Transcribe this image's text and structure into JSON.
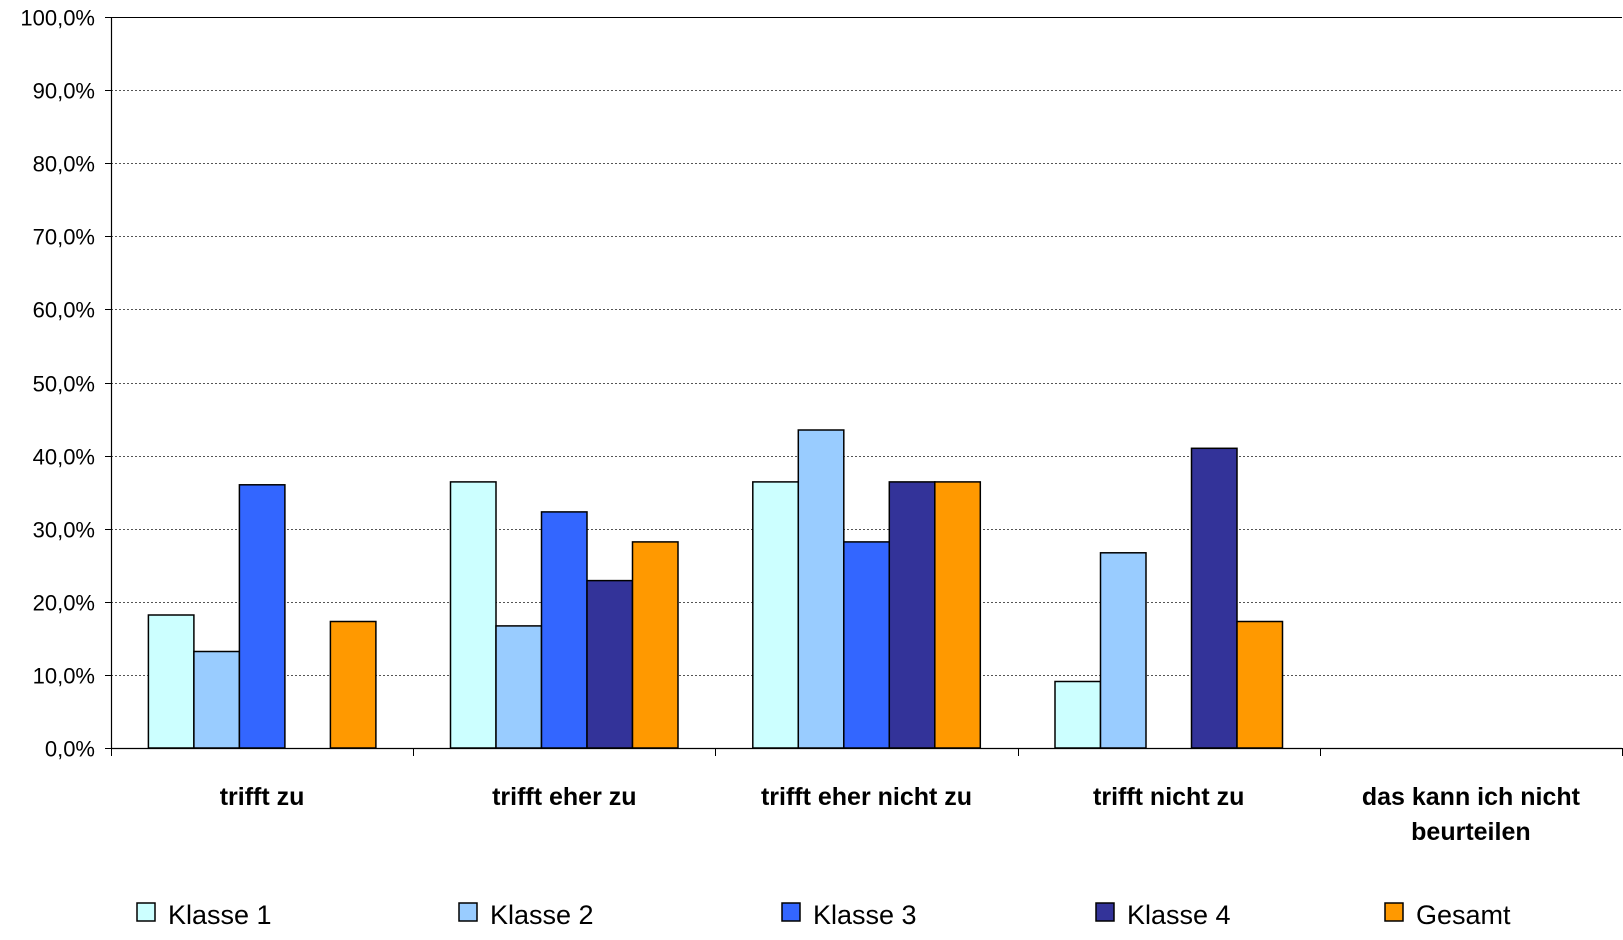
{
  "chart_data": {
    "type": "bar",
    "title": "",
    "xlabel": "",
    "ylabel": "",
    "categories": [
      [
        "trifft zu"
      ],
      [
        "trifft eher zu"
      ],
      [
        "trifft eher nicht zu"
      ],
      [
        "trifft nicht zu"
      ],
      [
        "das kann ich nicht",
        "beurteilen"
      ]
    ],
    "series": [
      {
        "name": "Klasse 1",
        "color": "#CCFFFF",
        "values": [
          18.2,
          36.4,
          36.4,
          9.1,
          0
        ]
      },
      {
        "name": "Klasse 2",
        "color": "#99CCFF",
        "values": [
          13.2,
          16.7,
          43.5,
          26.7,
          0
        ]
      },
      {
        "name": "Klasse 3",
        "color": "#3366FF",
        "values": [
          36.0,
          32.3,
          28.2,
          0,
          0
        ]
      },
      {
        "name": "Klasse 4",
        "color": "#333399",
        "values": [
          0,
          22.9,
          36.4,
          41.0,
          0
        ]
      },
      {
        "name": "Gesamt",
        "color": "#FF9900",
        "values": [
          17.3,
          28.2,
          36.4,
          17.3,
          0
        ]
      }
    ],
    "ylim": [
      0,
      100
    ],
    "yticks": [
      0,
      10,
      20,
      30,
      40,
      50,
      60,
      70,
      80,
      90,
      100
    ],
    "ytick_labels": [
      "0,0%",
      "10,0%",
      "20,0%",
      "30,0%",
      "40,0%",
      "50,0%",
      "60,0%",
      "70,0%",
      "80,0%",
      "90,0%",
      "100,0%"
    ],
    "grid": true,
    "legend_position": "bottom"
  }
}
